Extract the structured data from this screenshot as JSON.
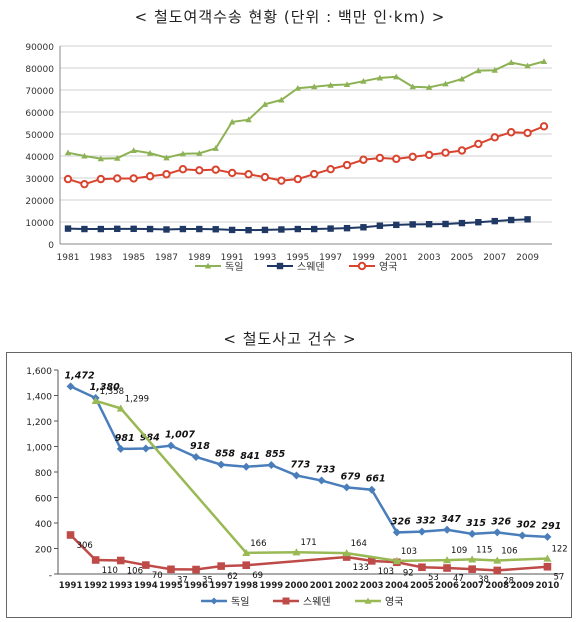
{
  "chart_data": [
    {
      "type": "line",
      "title": "< 철도여객수송 현황 (단위 : 백만 인·km) >",
      "x": [
        "1981",
        "1982",
        "1983",
        "1984",
        "1985",
        "1986",
        "1987",
        "1988",
        "1989",
        "1990",
        "1991",
        "1992",
        "1993",
        "1994",
        "1995",
        "1996",
        "1997",
        "1998",
        "1999",
        "2000",
        "2001",
        "2002",
        "2003",
        "2004",
        "2005",
        "2006",
        "2007",
        "2008",
        "2009",
        "2010"
      ],
      "x_tick_labels": [
        "1981",
        "1983",
        "1985",
        "1987",
        "1989",
        "1991",
        "1993",
        "1995",
        "1997",
        "1999",
        "2001",
        "2003",
        "2005",
        "2007",
        "2009"
      ],
      "ylim": [
        0,
        90000
      ],
      "y_ticks": [
        "0",
        "10000",
        "20000",
        "30000",
        "40000",
        "50000",
        "60000",
        "70000",
        "80000",
        "90000"
      ],
      "grid": true,
      "legend_position": "bottom",
      "series": [
        {
          "name": "독일",
          "color": "#8db255",
          "marker": "triangle",
          "values": [
            41500,
            40000,
            38800,
            39000,
            42500,
            41300,
            39200,
            41000,
            41200,
            43500,
            55500,
            56500,
            63500,
            65500,
            70800,
            71500,
            72200,
            72500,
            74000,
            75500,
            76000,
            71500,
            71200,
            72800,
            75000,
            78800,
            79000,
            82500,
            81000,
            83000
          ]
        },
        {
          "name": "스웨덴",
          "color": "#1f3864",
          "marker": "square",
          "values": [
            7000,
            6800,
            6800,
            6900,
            6900,
            6800,
            6600,
            6800,
            6800,
            6700,
            6400,
            6300,
            6400,
            6600,
            6800,
            6800,
            7000,
            7200,
            7600,
            8300,
            8700,
            8900,
            9000,
            9100,
            9500,
            9900,
            10400,
            10900,
            11200,
            null
          ]
        },
        {
          "name": "영국",
          "color": "#d9442f",
          "marker": "circle",
          "values": [
            29500,
            27200,
            29500,
            29800,
            29800,
            30800,
            31700,
            34000,
            33500,
            33800,
            32300,
            31700,
            30400,
            28800,
            29500,
            31800,
            34000,
            35900,
            38300,
            39100,
            38700,
            39600,
            40500,
            41500,
            42500,
            45500,
            48500,
            50800,
            50500,
            53500
          ]
        }
      ]
    },
    {
      "type": "line",
      "title": "< 철도사고 건수 >",
      "x": [
        "1991",
        "1992",
        "1993",
        "1994",
        "1995",
        "1996",
        "1997",
        "1998",
        "1999",
        "2000",
        "2001",
        "2002",
        "2003",
        "2004",
        "2005",
        "2006",
        "2007",
        "2008",
        "2009",
        "2010"
      ],
      "ylim": [
        0,
        1600
      ],
      "y_ticks": [
        "-",
        "200",
        "400",
        "600",
        "800",
        "1,000",
        "1,200",
        "1,400",
        "1,600"
      ],
      "grid": false,
      "legend_position": "bottom",
      "series": [
        {
          "name": "독일",
          "color": "#4a7ebb",
          "marker": "diamond",
          "values": [
            1472,
            1380,
            981,
            984,
            1007,
            918,
            858,
            841,
            855,
            773,
            733,
            679,
            661,
            326,
            332,
            347,
            315,
            326,
            302,
            291
          ],
          "labels": [
            "1,472",
            "1,380",
            "981",
            "984",
            "1,007",
            "918",
            "858",
            "841",
            "855",
            "773",
            "733",
            "679",
            "661",
            "326",
            "332",
            "347",
            "315",
            "326",
            "302",
            "291"
          ]
        },
        {
          "name": "스웨덴",
          "color": "#be4b48",
          "marker": "square",
          "values": [
            306,
            110,
            106,
            70,
            37,
            35,
            62,
            69,
            null,
            null,
            null,
            133,
            103,
            92,
            53,
            47,
            38,
            28,
            null,
            57
          ],
          "labels": [
            "306",
            "110",
            "106",
            "70",
            "37",
            "35",
            "62",
            "69",
            "",
            "",
            "",
            "133",
            "103",
            "92",
            "53",
            "47",
            "38",
            "28",
            "",
            "57"
          ]
        },
        {
          "name": "영국",
          "color": "#98b954",
          "marker": "triangle",
          "values": [
            null,
            1358,
            1299,
            null,
            null,
            null,
            null,
            166,
            null,
            171,
            null,
            164,
            null,
            103,
            null,
            109,
            115,
            106,
            null,
            122
          ],
          "labels": [
            "",
            "1,358",
            "1,299",
            "",
            "",
            "",
            "",
            "166",
            "",
            "171",
            "",
            "164",
            "",
            "103",
            "",
            "109",
            "115",
            "106",
            "",
            "122"
          ]
        }
      ]
    }
  ],
  "chart_rendering_note_excluded": true
}
